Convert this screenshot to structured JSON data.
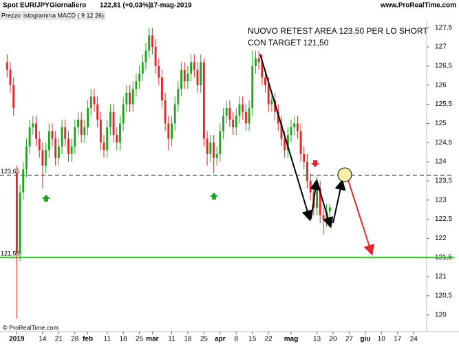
{
  "header": {
    "instrument": "Spot EUR/JPY",
    "period": "Giornaliero",
    "last": "122,81 (+0,03%)",
    "date": "17-mag-2019",
    "site": "www.ProRealTime.com",
    "panel": "Prezzo",
    "indicator": "istogramma MACD ( 9 12 26)",
    "copyright": "© ProRealTime.com"
  },
  "chart_data": {
    "type": "candlestick",
    "annotations": [
      "NUOVO RETEST AREA 123,50 PER LO SHORT",
      "CON TARGET 121,50"
    ],
    "x": [
      -3,
      -2,
      -1,
      0,
      1,
      2,
      3,
      4,
      5,
      6,
      7,
      8,
      9,
      10,
      11,
      12,
      13,
      14,
      15,
      16,
      17,
      18,
      19,
      20,
      21,
      22,
      23,
      24,
      25,
      26,
      27,
      28,
      29,
      30,
      31,
      32,
      33,
      34,
      35,
      36,
      37,
      38,
      39,
      40,
      41,
      42,
      43,
      44,
      45,
      46,
      47,
      48,
      49,
      50,
      51,
      52,
      53,
      54,
      55,
      56,
      57,
      58,
      59,
      60,
      61,
      62,
      63,
      64,
      65,
      66,
      67,
      68,
      69,
      70,
      71,
      72,
      73,
      74,
      75,
      76,
      77,
      78,
      79,
      80,
      81,
      82,
      83,
      84,
      85,
      86,
      87,
      88,
      89,
      90,
      91,
      92,
      93,
      94,
      95,
      96,
      97
    ],
    "open": [
      126.6,
      126.4,
      126.0,
      123.7,
      121.6,
      123.2,
      123.8,
      124.4,
      124.9,
      125.0,
      124.6,
      124.3,
      123.9,
      124.3,
      124.8,
      124.6,
      124.1,
      124.4,
      124.9,
      124.6,
      124.2,
      124.4,
      124.9,
      125.1,
      124.7,
      124.9,
      125.4,
      125.7,
      125.5,
      125.1,
      124.5,
      124.3,
      124.9,
      125.3,
      124.7,
      124.5,
      125.0,
      125.5,
      125.8,
      125.5,
      125.9,
      126.1,
      126.3,
      126.6,
      126.9,
      127.3,
      127.0,
      126.5,
      126.2,
      125.6,
      125.0,
      124.6,
      125.0,
      125.5,
      125.9,
      126.4,
      126.1,
      126.3,
      126.6,
      126.4,
      126.0,
      126.6,
      124.6,
      124.2,
      124.5,
      124.1,
      124.2,
      124.8,
      125.2,
      125.4,
      125.1,
      124.9,
      125.2,
      125.5,
      125.3,
      125.0,
      125.4,
      126.5,
      126.7,
      126.6,
      126.2,
      126.0,
      125.5,
      125.6,
      125.3,
      125.0,
      124.6,
      124.3,
      124.7,
      124.9,
      125.0,
      124.8,
      124.2,
      124.0,
      123.5,
      123.2,
      122.8,
      123.3,
      122.6,
      122.5,
      122.7
    ],
    "high": [
      126.8,
      126.6,
      126.2,
      123.9,
      123.4,
      124.0,
      124.6,
      125.1,
      125.2,
      125.2,
      124.8,
      124.5,
      124.5,
      125.0,
      125.0,
      124.8,
      124.6,
      125.1,
      125.1,
      124.8,
      124.6,
      125.1,
      125.3,
      125.3,
      125.1,
      125.6,
      125.9,
      125.9,
      125.7,
      125.3,
      124.7,
      125.1,
      125.5,
      125.5,
      124.9,
      125.2,
      125.7,
      126.0,
      126.0,
      126.1,
      126.3,
      126.5,
      126.8,
      127.1,
      127.5,
      127.5,
      127.2,
      126.7,
      126.4,
      125.8,
      125.2,
      125.2,
      125.7,
      126.1,
      126.6,
      126.6,
      126.5,
      126.8,
      126.8,
      126.6,
      126.8,
      126.7,
      124.8,
      124.7,
      124.7,
      124.4,
      125.0,
      125.4,
      125.6,
      125.6,
      125.3,
      125.4,
      125.7,
      125.7,
      125.5,
      125.6,
      126.9,
      126.9,
      126.9,
      126.8,
      126.4,
      126.2,
      125.8,
      125.8,
      125.5,
      125.2,
      124.8,
      124.9,
      125.1,
      125.2,
      125.2,
      125.0,
      124.4,
      124.2,
      123.7,
      123.4,
      123.6,
      123.5,
      122.8,
      122.9,
      122.9
    ],
    "low": [
      126.2,
      125.8,
      125.2,
      119.9,
      121.4,
      123.0,
      123.6,
      124.2,
      124.7,
      124.4,
      124.1,
      123.3,
      123.7,
      124.1,
      124.4,
      123.9,
      123.9,
      124.2,
      124.4,
      124.0,
      124.0,
      124.2,
      124.7,
      124.5,
      124.5,
      124.7,
      125.2,
      125.3,
      124.9,
      124.3,
      124.1,
      124.1,
      124.7,
      124.5,
      124.3,
      124.3,
      124.8,
      125.3,
      125.3,
      125.3,
      125.7,
      125.9,
      126.1,
      126.4,
      126.7,
      126.8,
      126.3,
      126.0,
      125.4,
      124.8,
      124.3,
      124.4,
      124.8,
      125.3,
      125.7,
      125.9,
      125.9,
      126.1,
      126.2,
      125.8,
      125.8,
      124.4,
      123.9,
      124.0,
      123.7,
      123.9,
      124.0,
      124.6,
      125.0,
      124.9,
      124.7,
      124.7,
      125.0,
      125.1,
      124.8,
      124.8,
      125.2,
      126.3,
      126.4,
      126.0,
      125.8,
      125.3,
      125.3,
      125.1,
      124.8,
      124.4,
      124.1,
      124.1,
      124.5,
      124.7,
      124.6,
      124.0,
      123.8,
      123.3,
      123.0,
      122.6,
      122.6,
      122.4,
      122.1,
      122.3,
      122.5
    ],
    "close": [
      126.4,
      126.0,
      125.4,
      121.6,
      123.2,
      123.8,
      124.4,
      124.9,
      125.0,
      124.6,
      124.3,
      123.9,
      124.3,
      124.8,
      124.6,
      124.1,
      124.4,
      124.9,
      124.6,
      124.2,
      124.4,
      124.9,
      125.1,
      124.7,
      124.9,
      125.4,
      125.7,
      125.5,
      125.1,
      124.5,
      124.3,
      124.9,
      125.3,
      124.7,
      124.5,
      125.0,
      125.5,
      125.8,
      125.5,
      125.9,
      126.1,
      126.3,
      126.6,
      126.9,
      127.3,
      127.0,
      126.5,
      126.2,
      125.6,
      125.0,
      124.6,
      125.0,
      125.5,
      125.9,
      126.4,
      126.1,
      126.3,
      126.6,
      126.4,
      126.0,
      126.6,
      124.6,
      124.2,
      124.5,
      124.1,
      124.2,
      124.8,
      125.2,
      125.4,
      125.1,
      124.9,
      125.2,
      125.5,
      125.3,
      125.0,
      125.4,
      126.5,
      126.7,
      126.6,
      126.2,
      126.0,
      125.5,
      125.6,
      125.3,
      125.0,
      124.6,
      124.3,
      124.7,
      124.9,
      125.0,
      124.8,
      124.2,
      124.0,
      123.5,
      123.2,
      122.8,
      123.3,
      122.6,
      122.5,
      122.7,
      122.81
    ],
    "up_color": "#1fa51f",
    "down_color": "#e8262a",
    "xlim": [
      -5.2,
      127
    ],
    "xticks": [
      {
        "value": 0,
        "label": "2019"
      },
      {
        "value": 8,
        "label": "14"
      },
      {
        "value": 13,
        "label": "21"
      },
      {
        "value": 18,
        "label": "28"
      },
      {
        "value": 22,
        "label": "feb"
      },
      {
        "value": 28,
        "label": "11"
      },
      {
        "value": 33,
        "label": "18"
      },
      {
        "value": 38,
        "label": "25"
      },
      {
        "value": 42,
        "label": "mar"
      },
      {
        "value": 48,
        "label": "11"
      },
      {
        "value": 53,
        "label": "18"
      },
      {
        "value": 58,
        "label": "25"
      },
      {
        "value": 63,
        "label": "apr"
      },
      {
        "value": 68,
        "label": "8"
      },
      {
        "value": 73,
        "label": "15"
      },
      {
        "value": 78,
        "label": "22"
      },
      {
        "value": 85,
        "label": "mag"
      },
      {
        "value": 93,
        "label": "13"
      },
      {
        "value": 98,
        "label": "20"
      },
      {
        "value": 103,
        "label": "27"
      },
      {
        "value": 108,
        "label": "giu"
      },
      {
        "value": 113,
        "label": "10"
      },
      {
        "value": 118,
        "label": "17"
      },
      {
        "value": 123,
        "label": "24"
      }
    ],
    "ylim": [
      119.6,
      127.9
    ],
    "yticks": [
      120,
      {
        "value": 120.5,
        "label": "120,5"
      },
      121,
      {
        "value": 121.5,
        "label": "121,5"
      },
      122,
      {
        "value": 122.5,
        "label": "122,5"
      },
      123,
      {
        "value": 123.5,
        "label": "123,5"
      },
      124,
      {
        "value": 124.5,
        "label": "124,5"
      },
      125,
      {
        "value": 125.5,
        "label": "125,5"
      },
      126,
      {
        "value": 126.5,
        "label": "126,5"
      },
      127,
      {
        "value": 127.5,
        "label": "127,5"
      }
    ],
    "hlines": [
      {
        "value": 123.65,
        "label": "123,65",
        "color": "#000000",
        "dashed": true
      },
      {
        "value": 121.5,
        "label": "121,50",
        "color": "#2ec22e",
        "dashed": false
      }
    ]
  }
}
